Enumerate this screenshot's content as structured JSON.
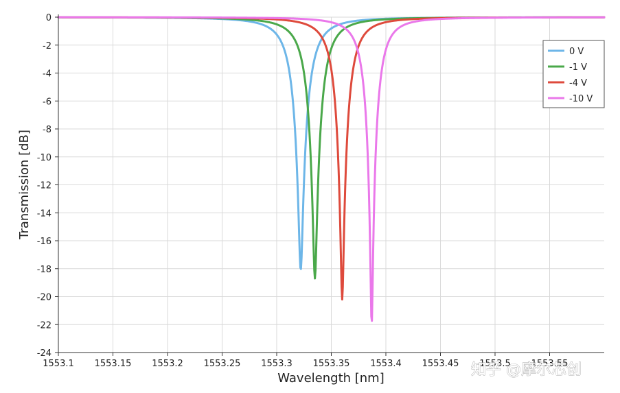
{
  "chart_data": {
    "type": "line",
    "title": "",
    "xlabel": "Wavelength [nm]",
    "ylabel": "Transmission [dB]",
    "xlim": [
      1553.1,
      1553.6
    ],
    "ylim": [
      -24,
      0
    ],
    "grid": true,
    "x_ticks": [
      1553.1,
      1553.15,
      1553.2,
      1553.25,
      1553.3,
      1553.35,
      1553.4,
      1553.45,
      1553.5,
      1553.55
    ],
    "x_tick_labels": [
      "1553.1",
      "1553.15",
      "1553.2",
      "1553.25",
      "1553.3",
      "1553.35",
      "1553.4",
      "1553.45",
      "1553.5",
      "1553.55"
    ],
    "y_ticks": [
      0,
      -2,
      -4,
      -6,
      -8,
      -10,
      -12,
      -14,
      -16,
      -18,
      -20,
      -22,
      -24
    ],
    "y_tick_labels": [
      "0",
      "-2",
      "-4",
      "-6",
      "-8",
      "-10",
      "-12",
      "-14",
      "-16",
      "-18",
      "-20",
      "-22",
      "-24"
    ],
    "legend_position": "top-right",
    "series": [
      {
        "name": "0 V",
        "color": "#6db6e8",
        "center": 1553.322,
        "min_db": -18.1,
        "hwhm": 0.0128
      },
      {
        "name": "-1 V",
        "color": "#4aa84a",
        "center": 1553.335,
        "min_db": -18.7,
        "hwhm": 0.0125
      },
      {
        "name": "-4 V",
        "color": "#de4a3c",
        "center": 1553.36,
        "min_db": -20.2,
        "hwhm": 0.0118
      },
      {
        "name": "-10 V",
        "color": "#ea78ea",
        "center": 1553.387,
        "min_db": -22.0,
        "hwhm": 0.011
      }
    ]
  },
  "watermark": "知乎 @摩尔芯创"
}
